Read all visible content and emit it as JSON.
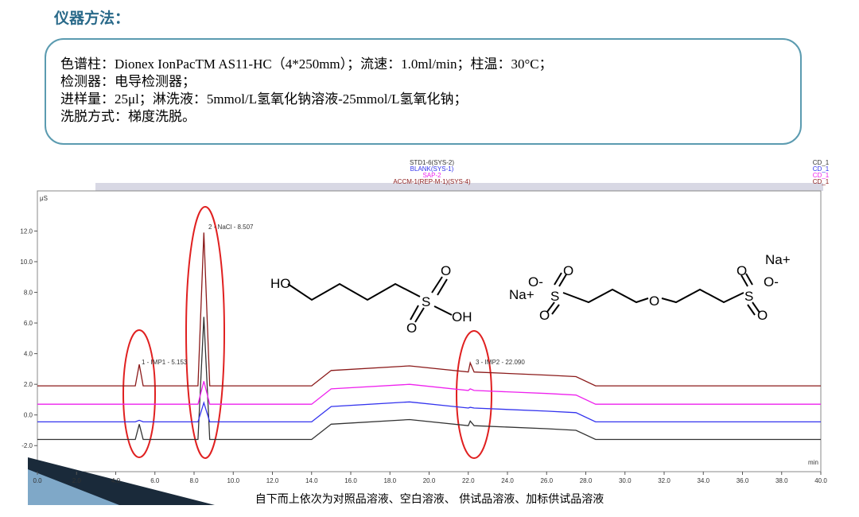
{
  "header": {
    "title": "仪器方法："
  },
  "info_box": {
    "lines": [
      "色谱柱：Dionex IonPacTM AS11-HC（4*250mm）；流速：1.0ml/min；柱温：30°C；",
      "检测器：电导检测器；",
      "进样量：25μl；淋洗液：5mmol/L氢氧化钠溶液-25mmol/L氢氧化钠；",
      "洗脱方式：梯度洗脱。"
    ]
  },
  "structures": {
    "left": [
      "HO",
      "S",
      "O",
      "O",
      "OH"
    ],
    "right": [
      "Na+",
      "O-",
      "S",
      "O",
      "O",
      "O",
      "O",
      "O",
      "S",
      "O-",
      "Na+"
    ]
  },
  "caption": "自下而上依次为对照品溶液、空白溶液、 供试品溶液、加标供试品溶液",
  "chart_data": {
    "type": "line",
    "y_label": "μS",
    "x_label": "min",
    "x": [
      0,
      4.5,
      5.0,
      5.2,
      5.4,
      6.0,
      8.2,
      8.5,
      8.8,
      10,
      14,
      15,
      19,
      22,
      22.1,
      22.3,
      26,
      27.5,
      28.5,
      40
    ],
    "series": [
      {
        "name": "STD1-6(SYS-2)",
        "detector": "CD_1",
        "color": "#333333",
        "values": [
          -1.6,
          -1.6,
          -1.6,
          -0.6,
          -1.6,
          -1.6,
          -1.6,
          6.4,
          -1.6,
          -1.6,
          -1.6,
          -0.6,
          -0.3,
          -0.7,
          -0.4,
          -0.7,
          -0.9,
          -1.0,
          -1.6,
          -1.6
        ]
      },
      {
        "name": "BLANK(SYS-1)",
        "detector": "CD_1",
        "color": "#3333ee",
        "values": [
          -0.45,
          -0.45,
          -0.45,
          -0.35,
          -0.45,
          -0.45,
          -0.45,
          0.8,
          -0.45,
          -0.45,
          -0.45,
          0.55,
          0.85,
          0.45,
          0.5,
          0.45,
          0.25,
          0.15,
          -0.45,
          -0.45
        ]
      },
      {
        "name": "SAP-2",
        "detector": "CD_1",
        "color": "#ee22ee",
        "values": [
          0.7,
          0.7,
          0.7,
          0.7,
          0.7,
          0.7,
          0.7,
          2.2,
          0.7,
          0.7,
          0.7,
          1.7,
          2.0,
          1.6,
          1.7,
          1.6,
          1.4,
          1.3,
          0.7,
          0.7
        ]
      },
      {
        "name": "ACCM-1(REP-M-1)(SYS-4)",
        "detector": "CD_1",
        "color": "#8b1a1a",
        "values": [
          1.9,
          1.9,
          1.9,
          3.3,
          1.9,
          1.9,
          1.9,
          11.9,
          1.9,
          1.9,
          1.9,
          2.9,
          3.2,
          2.8,
          3.4,
          2.8,
          2.6,
          2.5,
          1.9,
          1.9
        ]
      }
    ],
    "annotations": [
      "1 - IMP1 - 5.153",
      "2 - NaCl - 8.507",
      "3 - IMP2 - 22.090"
    ],
    "xlim": [
      0,
      40
    ],
    "ylim": [
      -3.7,
      14.1
    ],
    "xticks": [
      {
        "value": 0,
        "label": "0.0"
      },
      {
        "value": 2,
        "label": "2.0"
      },
      {
        "value": 4,
        "label": "4.0"
      },
      {
        "value": 6,
        "label": "6.0"
      },
      {
        "value": 8,
        "label": "8.0"
      },
      {
        "value": 10,
        "label": "10.0"
      },
      {
        "value": 12,
        "label": "12.0"
      },
      {
        "value": 14,
        "label": "14.0"
      },
      {
        "value": 16,
        "label": "16.0"
      },
      {
        "value": 18,
        "label": "18.0"
      },
      {
        "value": 20,
        "label": "20.0"
      },
      {
        "value": 22,
        "label": "22.0"
      },
      {
        "value": 24,
        "label": "24.0"
      },
      {
        "value": 26,
        "label": "26.0"
      },
      {
        "value": 28,
        "label": "28.0"
      },
      {
        "value": 30,
        "label": "30.0"
      },
      {
        "value": 32,
        "label": "32.0"
      },
      {
        "value": 34,
        "label": "34.0"
      },
      {
        "value": 36,
        "label": "36.0"
      },
      {
        "value": 38,
        "label": "38.0"
      },
      {
        "value": 40,
        "label": "40.0"
      }
    ],
    "yticks": [
      {
        "value": 12,
        "label": "12.0"
      },
      {
        "value": 10,
        "label": "10.0"
      },
      {
        "value": 8,
        "label": "8.0"
      },
      {
        "value": 6,
        "label": "6.0"
      },
      {
        "value": 4,
        "label": "4.0"
      },
      {
        "value": 2,
        "label": "2.0"
      },
      {
        "value": 0,
        "label": "0.0"
      },
      {
        "value": -2,
        "label": "-2.0"
      }
    ]
  }
}
